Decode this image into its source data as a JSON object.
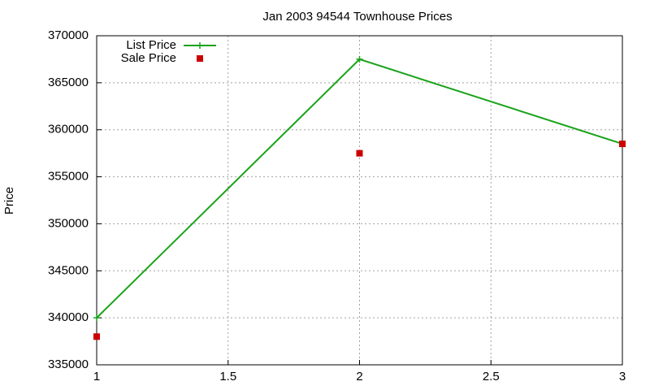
{
  "chart_data": {
    "type": "line",
    "title": "Jan 2003 94544 Townhouse Prices",
    "y_label": "Price",
    "x": [
      1,
      2,
      3
    ],
    "series": [
      {
        "name": "List Price",
        "color": "#1aa31a",
        "values": [
          340000,
          367500,
          358500
        ],
        "line": true,
        "marker": "plus"
      },
      {
        "name": "Sale Price",
        "color": "#cc0000",
        "values": [
          338000,
          357500,
          358500
        ],
        "line": false,
        "marker": "square"
      }
    ],
    "xlim": [
      1,
      3
    ],
    "xticks": [
      1,
      1.5,
      2,
      2.5,
      3
    ],
    "ylim": [
      335000,
      370000
    ],
    "yticks": [
      335000,
      340000,
      345000,
      350000,
      355000,
      360000,
      365000,
      370000
    ],
    "grid": true,
    "legend": "top-left"
  }
}
